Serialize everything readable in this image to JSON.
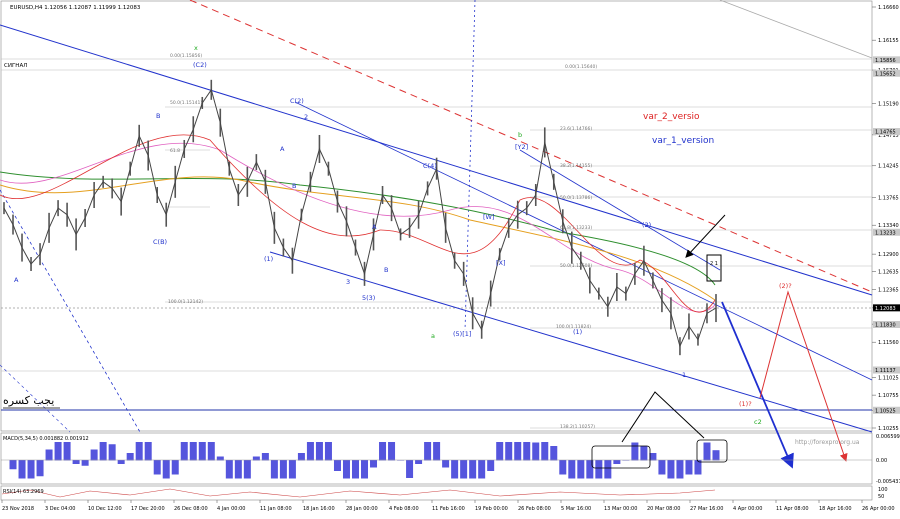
{
  "header": {
    "symbol_line": "EURUSD,H4  1.12056 1.12087 1.11999 1.12083",
    "signal_label": "СИГНАЛ",
    "watermark": "http://forexpro.org.ua",
    "arabic_note": "یجب کسره"
  },
  "chart_data": {
    "type": "line",
    "price_axis": {
      "ticks": [
        "1.16660",
        "1.16155",
        "1.15701",
        "1.15190",
        "1.14715",
        "1.14245",
        "1.13765",
        "1.13340",
        "1.12900",
        "1.12635",
        "1.12365",
        "1.12083",
        "1.11835",
        "1.11560",
        "1.11025",
        "1.10755",
        "1.10525",
        "1.10255"
      ],
      "highlight_labels": [
        "1.15856",
        "1.15652",
        "1.14765",
        "1.13233",
        "1.12083",
        "1.11830",
        "1.11137",
        "1.10525"
      ]
    },
    "time_axis": {
      "labels": [
        "23 Nov 2018",
        "3 Dec 04:00",
        "10 Dec 12:00",
        "17 Dec 20:00",
        "26 Dec 08:00",
        "4 Jan 00:00",
        "11 Jan 08:00",
        "18 Jan 16:00",
        "28 Jan 00:00",
        "4 Feb 08:00",
        "11 Feb 16:00",
        "19 Feb 00:00",
        "26 Feb 08:00",
        "5 Mar 16:00",
        "13 Mar 00:00",
        "20 Mar 08:00",
        "27 Mar 16:00",
        "4 Apr 00:00",
        "11 Apr 08:00",
        "18 Apr 16:00",
        "26 Apr 00:00"
      ]
    },
    "fib_labels": [
      "0.00(1.15856)",
      "50.0(1.15141)",
      "61.8",
      "0.00(1.15640)",
      "23.6(1.14766)",
      "38.2(1.14155)",
      "50.0(1.13786)",
      "61.8(1.13233)",
      "50.0(1.12608)",
      "100.0(1.12142)",
      "100.0(1.11824)",
      "138.2(1.10257)"
    ],
    "wave_labels": [
      "x",
      "(C2)",
      "B",
      "A",
      "C(B)",
      "C(2)",
      "2",
      "A",
      "B",
      "(1)",
      "3",
      "5(3)",
      "A",
      "B",
      "C(4)",
      "a",
      "(5)[1]",
      "[W]",
      "[X]",
      "b",
      "[Y2]",
      "(1)",
      "(2)",
      "1",
      "(1)?",
      "(2)?",
      "c2"
    ],
    "annotations": {
      "var_2": "var_2_versio",
      "var_1": "var_1_version",
      "boxed_wave": "2 1"
    },
    "macd": {
      "label": "MACD(5,34,5) 0.001882 0.001912",
      "ticks": [
        "0.006599",
        "0.00",
        "-0.005437"
      ]
    },
    "rsi": {
      "label": "RSI(14) 63.2969",
      "ticks": [
        "100",
        "50"
      ]
    },
    "series": [
      {
        "values": [
          1.136,
          1.1335,
          1.13,
          1.1275,
          1.129,
          1.133,
          1.136,
          1.135,
          1.132,
          1.1345,
          1.138,
          1.14,
          1.139,
          1.137,
          1.142,
          1.147,
          1.144,
          1.138,
          1.135,
          1.14,
          1.145,
          1.148,
          1.152,
          1.154,
          1.149,
          1.142,
          1.138,
          1.14,
          1.143,
          1.14,
          1.133,
          1.13,
          1.128,
          1.135,
          1.14,
          1.145,
          1.142,
          1.137,
          1.134,
          1.13,
          1.126,
          1.132,
          1.138,
          1.136,
          1.132,
          1.133,
          1.135,
          1.139,
          1.142,
          1.133,
          1.128,
          1.126,
          1.12,
          1.1175,
          1.123,
          1.129,
          1.133,
          1.135,
          1.136,
          1.138,
          1.146,
          1.14,
          1.134,
          1.13,
          1.128,
          1.125,
          1.123,
          1.121,
          1.124,
          1.123,
          1.126,
          1.128,
          1.125,
          1.122,
          1.12,
          1.115,
          1.118,
          1.116,
          1.12,
          1.1208
        ]
      }
    ]
  }
}
